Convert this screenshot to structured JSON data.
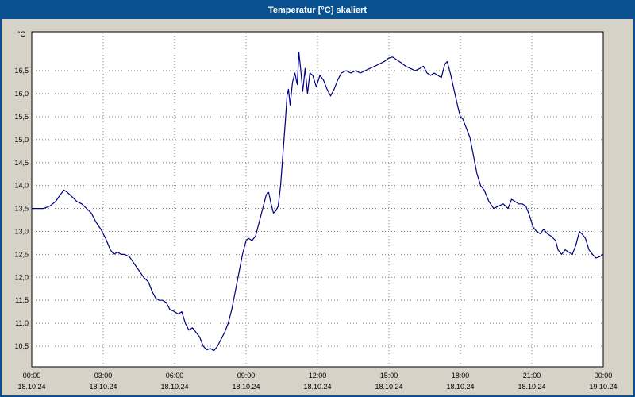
{
  "window": {
    "title": "Temperatur [°C] skaliert"
  },
  "colors": {
    "title_bar": "#0a5191",
    "window_border": "#0a5191",
    "background": "#d6d2c8",
    "plot_bg": "#ffffff",
    "grid": "#7f7f7f",
    "axis": "#000000",
    "text": "#000000",
    "line": "#000080"
  },
  "chart_data": {
    "type": "line",
    "title": "Temperatur [°C] skaliert",
    "ylabel": "°C",
    "xlabel": "",
    "xlim": [
      0,
      24
    ],
    "ylim": [
      10.05,
      17.35
    ],
    "grid": "dotted",
    "legend": "none",
    "x_ticks": [
      {
        "t": 0,
        "time": "00:00",
        "date": "18.10.24"
      },
      {
        "t": 3,
        "time": "03:00",
        "date": "18.10.24"
      },
      {
        "t": 6,
        "time": "06:00",
        "date": "18.10.24"
      },
      {
        "t": 9,
        "time": "09:00",
        "date": "18.10.24"
      },
      {
        "t": 12,
        "time": "12:00",
        "date": "18.10.24"
      },
      {
        "t": 15,
        "time": "15:00",
        "date": "18.10.24"
      },
      {
        "t": 18,
        "time": "18:00",
        "date": "18.10.24"
      },
      {
        "t": 21,
        "time": "21:00",
        "date": "18.10.24"
      },
      {
        "t": 24,
        "time": "00:00",
        "date": "19.10.24"
      }
    ],
    "y_ticks": [
      {
        "v": 16.5,
        "label": "16,5"
      },
      {
        "v": 16.0,
        "label": "16,0"
      },
      {
        "v": 15.5,
        "label": "15,5"
      },
      {
        "v": 15.0,
        "label": "15,0"
      },
      {
        "v": 14.5,
        "label": "14,5"
      },
      {
        "v": 14.0,
        "label": "14,0"
      },
      {
        "v": 13.5,
        "label": "13,5"
      },
      {
        "v": 13.0,
        "label": "13,0"
      },
      {
        "v": 12.5,
        "label": "12,5"
      },
      {
        "v": 12.0,
        "label": "12,0"
      },
      {
        "v": 11.5,
        "label": "11,5"
      },
      {
        "v": 11.0,
        "label": "11,0"
      },
      {
        "v": 10.5,
        "label": "10,5"
      }
    ],
    "series": [
      {
        "name": "Temperatur",
        "unit": "°C",
        "points": [
          [
            0,
            13.5
          ],
          [
            0.25,
            13.5
          ],
          [
            0.5,
            13.5
          ],
          [
            0.75,
            13.55
          ],
          [
            1,
            13.65
          ],
          [
            1.2,
            13.8
          ],
          [
            1.35,
            13.9
          ],
          [
            1.5,
            13.85
          ],
          [
            1.7,
            13.75
          ],
          [
            1.9,
            13.65
          ],
          [
            2.1,
            13.6
          ],
          [
            2.3,
            13.5
          ],
          [
            2.5,
            13.4
          ],
          [
            2.7,
            13.2
          ],
          [
            2.9,
            13.05
          ],
          [
            3.1,
            12.85
          ],
          [
            3.3,
            12.6
          ],
          [
            3.45,
            12.5
          ],
          [
            3.6,
            12.55
          ],
          [
            3.75,
            12.5
          ],
          [
            3.9,
            12.5
          ],
          [
            4.1,
            12.45
          ],
          [
            4.3,
            12.3
          ],
          [
            4.5,
            12.15
          ],
          [
            4.7,
            12.0
          ],
          [
            4.9,
            11.9
          ],
          [
            5.05,
            11.7
          ],
          [
            5.2,
            11.55
          ],
          [
            5.35,
            11.5
          ],
          [
            5.5,
            11.5
          ],
          [
            5.65,
            11.45
          ],
          [
            5.8,
            11.3
          ],
          [
            6,
            11.25
          ],
          [
            6.15,
            11.2
          ],
          [
            6.3,
            11.25
          ],
          [
            6.45,
            11.0
          ],
          [
            6.6,
            10.85
          ],
          [
            6.75,
            10.9
          ],
          [
            6.9,
            10.8
          ],
          [
            7.05,
            10.7
          ],
          [
            7.2,
            10.5
          ],
          [
            7.35,
            10.42
          ],
          [
            7.5,
            10.45
          ],
          [
            7.65,
            10.4
          ],
          [
            7.8,
            10.5
          ],
          [
            7.95,
            10.65
          ],
          [
            8.1,
            10.8
          ],
          [
            8.25,
            11.0
          ],
          [
            8.4,
            11.3
          ],
          [
            8.55,
            11.7
          ],
          [
            8.7,
            12.1
          ],
          [
            8.85,
            12.5
          ],
          [
            9,
            12.8
          ],
          [
            9.1,
            12.85
          ],
          [
            9.25,
            12.8
          ],
          [
            9.4,
            12.9
          ],
          [
            9.55,
            13.2
          ],
          [
            9.7,
            13.5
          ],
          [
            9.85,
            13.8
          ],
          [
            9.95,
            13.85
          ],
          [
            10.05,
            13.6
          ],
          [
            10.15,
            13.4
          ],
          [
            10.25,
            13.45
          ],
          [
            10.35,
            13.55
          ],
          [
            10.45,
            14.0
          ],
          [
            10.55,
            14.7
          ],
          [
            10.65,
            15.4
          ],
          [
            10.72,
            15.95
          ],
          [
            10.78,
            16.1
          ],
          [
            10.85,
            15.75
          ],
          [
            10.95,
            16.25
          ],
          [
            11.05,
            16.45
          ],
          [
            11.15,
            16.2
          ],
          [
            11.22,
            16.9
          ],
          [
            11.3,
            16.5
          ],
          [
            11.38,
            16.05
          ],
          [
            11.48,
            16.55
          ],
          [
            11.58,
            16.0
          ],
          [
            11.68,
            16.45
          ],
          [
            11.8,
            16.4
          ],
          [
            11.95,
            16.15
          ],
          [
            12.1,
            16.4
          ],
          [
            12.25,
            16.3
          ],
          [
            12.4,
            16.1
          ],
          [
            12.55,
            15.95
          ],
          [
            12.7,
            16.1
          ],
          [
            12.85,
            16.3
          ],
          [
            13,
            16.45
          ],
          [
            13.2,
            16.5
          ],
          [
            13.4,
            16.45
          ],
          [
            13.6,
            16.5
          ],
          [
            13.8,
            16.45
          ],
          [
            14,
            16.5
          ],
          [
            14.2,
            16.55
          ],
          [
            14.4,
            16.6
          ],
          [
            14.6,
            16.65
          ],
          [
            14.8,
            16.7
          ],
          [
            15,
            16.78
          ],
          [
            15.15,
            16.8
          ],
          [
            15.3,
            16.75
          ],
          [
            15.5,
            16.68
          ],
          [
            15.7,
            16.6
          ],
          [
            15.9,
            16.55
          ],
          [
            16.1,
            16.5
          ],
          [
            16.3,
            16.55
          ],
          [
            16.45,
            16.6
          ],
          [
            16.6,
            16.45
          ],
          [
            16.75,
            16.4
          ],
          [
            16.9,
            16.45
          ],
          [
            17.05,
            16.4
          ],
          [
            17.2,
            16.35
          ],
          [
            17.35,
            16.65
          ],
          [
            17.45,
            16.7
          ],
          [
            17.6,
            16.4
          ],
          [
            17.75,
            16.05
          ],
          [
            17.9,
            15.7
          ],
          [
            18,
            15.5
          ],
          [
            18.1,
            15.45
          ],
          [
            18.25,
            15.25
          ],
          [
            18.4,
            15.05
          ],
          [
            18.55,
            14.65
          ],
          [
            18.7,
            14.25
          ],
          [
            18.85,
            14.0
          ],
          [
            19,
            13.9
          ],
          [
            19.2,
            13.65
          ],
          [
            19.4,
            13.5
          ],
          [
            19.6,
            13.55
          ],
          [
            19.8,
            13.6
          ],
          [
            20,
            13.5
          ],
          [
            20.15,
            13.7
          ],
          [
            20.3,
            13.65
          ],
          [
            20.45,
            13.6
          ],
          [
            20.6,
            13.6
          ],
          [
            20.75,
            13.55
          ],
          [
            20.9,
            13.35
          ],
          [
            21.05,
            13.1
          ],
          [
            21.2,
            13.0
          ],
          [
            21.35,
            12.95
          ],
          [
            21.5,
            13.05
          ],
          [
            21.65,
            12.95
          ],
          [
            21.8,
            12.9
          ],
          [
            22,
            12.8
          ],
          [
            22.1,
            12.6
          ],
          [
            22.25,
            12.5
          ],
          [
            22.4,
            12.6
          ],
          [
            22.55,
            12.55
          ],
          [
            22.7,
            12.5
          ],
          [
            22.85,
            12.7
          ],
          [
            23,
            13.0
          ],
          [
            23.1,
            12.95
          ],
          [
            23.25,
            12.85
          ],
          [
            23.4,
            12.6
          ],
          [
            23.55,
            12.5
          ],
          [
            23.7,
            12.42
          ],
          [
            23.85,
            12.45
          ],
          [
            24,
            12.5
          ]
        ]
      }
    ]
  }
}
